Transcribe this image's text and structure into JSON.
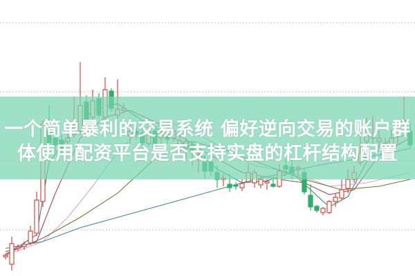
{
  "headline": {
    "line1": "一个简单暴利的交易系统 偏好逆向交易的账户群",
    "line2": "体使用配资平台是否支持实盘的杠杆结构配置"
  },
  "colors": {
    "up": "#e0453f",
    "down": "#2fae66",
    "banner": "#78d6b2",
    "grid": "#d9a0a0",
    "ma": [
      "#2a8a6a",
      "#b0406a",
      "#d9a0e0",
      "#6a7a30",
      "#3a8aa0"
    ]
  },
  "chart_data": {
    "type": "candlestick",
    "title": "",
    "grid": true,
    "candles": [
      {
        "o": 28,
        "c": 30,
        "h": 32,
        "l": 24
      },
      {
        "o": 17,
        "c": 47,
        "h": 57,
        "l": 8
      },
      {
        "o": 40,
        "c": 42,
        "h": 46,
        "l": 36
      },
      {
        "o": 43,
        "c": 46,
        "h": 50,
        "l": 38
      },
      {
        "o": 48,
        "c": 65,
        "h": 73,
        "l": 45
      },
      {
        "o": 62,
        "c": 110,
        "h": 122,
        "l": 58
      },
      {
        "o": 108,
        "c": 220,
        "h": 225,
        "l": 100
      },
      {
        "o": 210,
        "c": 193,
        "h": 248,
        "l": 185
      },
      {
        "o": 200,
        "c": 190,
        "h": 215,
        "l": 180
      },
      {
        "o": 197,
        "c": 185,
        "h": 205,
        "l": 178
      },
      {
        "o": 195,
        "c": 200,
        "h": 220,
        "l": 188
      },
      {
        "o": 205,
        "c": 215,
        "h": 260,
        "l": 200
      },
      {
        "o": 210,
        "c": 247,
        "h": 310,
        "l": 205
      },
      {
        "o": 252,
        "c": 227,
        "h": 262,
        "l": 220
      },
      {
        "o": 230,
        "c": 254,
        "h": 270,
        "l": 225
      },
      {
        "o": 257,
        "c": 233,
        "h": 265,
        "l": 228
      },
      {
        "o": 230,
        "c": 270,
        "h": 288,
        "l": 225
      },
      {
        "o": 268,
        "c": 243,
        "h": 272,
        "l": 238
      },
      {
        "o": 233,
        "c": 242,
        "h": 285,
        "l": 228
      },
      {
        "o": 240,
        "c": 243,
        "h": 250,
        "l": 235
      },
      {
        "o": 203,
        "c": 210,
        "h": 230,
        "l": 192
      },
      {
        "o": 210,
        "c": 205,
        "h": 215,
        "l": 198
      },
      {
        "o": 207,
        "c": 193,
        "h": 212,
        "l": 185
      },
      {
        "o": 192,
        "c": 208,
        "h": 215,
        "l": 188
      },
      {
        "o": 210,
        "c": 187,
        "h": 215,
        "l": 175
      },
      {
        "o": 200,
        "c": 205,
        "h": 210,
        "l": 190
      },
      {
        "o": 205,
        "c": 198,
        "h": 212,
        "l": 192
      },
      {
        "o": 200,
        "c": 210,
        "h": 215,
        "l": 195
      },
      {
        "o": 190,
        "c": 196,
        "h": 220,
        "l": 180
      },
      {
        "o": 185,
        "c": 195,
        "h": 200,
        "l": 170
      },
      {
        "o": 190,
        "c": 180,
        "h": 195,
        "l": 160
      },
      {
        "o": 170,
        "c": 175,
        "h": 180,
        "l": 150
      },
      {
        "o": 165,
        "c": 152,
        "h": 175,
        "l": 140
      },
      {
        "o": 165,
        "c": 152,
        "h": 180,
        "l": 145
      },
      {
        "o": 150,
        "c": 140,
        "h": 160,
        "l": 128
      },
      {
        "o": 140,
        "c": 142,
        "h": 148,
        "l": 130
      },
      {
        "o": 133,
        "c": 128,
        "h": 148,
        "l": 122
      },
      {
        "o": 132,
        "c": 130,
        "h": 136,
        "l": 125
      },
      {
        "o": 128,
        "c": 134,
        "h": 140,
        "l": 123
      },
      {
        "o": 137,
        "c": 150,
        "h": 163,
        "l": 135
      },
      {
        "o": 135,
        "c": 150,
        "h": 155,
        "l": 128
      },
      {
        "o": 132,
        "c": 140,
        "h": 145,
        "l": 127
      },
      {
        "o": 135,
        "c": 137,
        "h": 140,
        "l": 125
      },
      {
        "o": 133,
        "c": 130,
        "h": 145,
        "l": 128
      },
      {
        "o": 130,
        "c": 152,
        "h": 162,
        "l": 128
      },
      {
        "o": 160,
        "c": 155,
        "h": 170,
        "l": 145
      },
      {
        "o": 158,
        "c": 150,
        "h": 168,
        "l": 140
      },
      {
        "o": 155,
        "c": 157,
        "h": 160,
        "l": 145
      },
      {
        "o": 150,
        "c": 122,
        "h": 155,
        "l": 118
      },
      {
        "o": 117,
        "c": 100,
        "h": 133,
        "l": 95
      },
      {
        "o": 101,
        "c": 95,
        "h": 103,
        "l": 92
      },
      {
        "o": 92,
        "c": 98,
        "h": 100,
        "l": 88
      },
      {
        "o": 92,
        "c": 108,
        "h": 110,
        "l": 90
      },
      {
        "o": 108,
        "c": 114,
        "h": 120,
        "l": 100
      },
      {
        "o": 113,
        "c": 125,
        "h": 140,
        "l": 110
      },
      {
        "o": 127,
        "c": 140,
        "h": 155,
        "l": 120
      },
      {
        "o": 140,
        "c": 150,
        "h": 160,
        "l": 135
      },
      {
        "o": 165,
        "c": 177,
        "h": 217,
        "l": 160
      },
      {
        "o": 195,
        "c": 210,
        "h": 230,
        "l": 185
      },
      {
        "o": 200,
        "c": 203,
        "h": 232,
        "l": 190
      },
      {
        "o": 195,
        "c": 200,
        "h": 210,
        "l": 185
      },
      {
        "o": 188,
        "c": 192,
        "h": 200,
        "l": 180
      },
      {
        "o": 190,
        "c": 200,
        "h": 212,
        "l": 185
      },
      {
        "o": 205,
        "c": 215,
        "h": 225,
        "l": 190
      },
      {
        "o": 222,
        "c": 225,
        "h": 260,
        "l": 215
      },
      {
        "o": 210,
        "c": 190,
        "h": 222,
        "l": 185
      }
    ],
    "moving_averages": [
      [
        [
          0,
          30
        ],
        [
          5,
          60
        ],
        [
          7,
          165
        ],
        [
          10,
          200
        ],
        [
          14,
          240
        ],
        [
          18,
          250
        ],
        [
          22,
          225
        ],
        [
          26,
          205
        ],
        [
          30,
          185
        ],
        [
          34,
          155
        ],
        [
          38,
          135
        ],
        [
          42,
          138
        ],
        [
          46,
          150
        ],
        [
          49,
          125
        ],
        [
          52,
          100
        ],
        [
          55,
          115
        ],
        [
          58,
          165
        ],
        [
          62,
          200
        ],
        [
          65,
          205
        ]
      ],
      [
        [
          0,
          35
        ],
        [
          5,
          50
        ],
        [
          8,
          120
        ],
        [
          12,
          200
        ],
        [
          16,
          230
        ],
        [
          20,
          240
        ],
        [
          26,
          215
        ],
        [
          32,
          180
        ],
        [
          38,
          150
        ],
        [
          44,
          140
        ],
        [
          48,
          135
        ],
        [
          52,
          118
        ],
        [
          56,
          125
        ],
        [
          60,
          175
        ],
        [
          65,
          200
        ]
      ],
      [
        [
          0,
          30
        ],
        [
          6,
          50
        ],
        [
          10,
          85
        ],
        [
          14,
          130
        ],
        [
          18,
          180
        ],
        [
          22,
          215
        ],
        [
          28,
          220
        ],
        [
          34,
          190
        ],
        [
          40,
          160
        ],
        [
          46,
          150
        ],
        [
          52,
          130
        ],
        [
          58,
          135
        ],
        [
          65,
          150
        ]
      ],
      [
        [
          0,
          32
        ],
        [
          6,
          55
        ],
        [
          12,
          85
        ],
        [
          18,
          120
        ],
        [
          24,
          170
        ],
        [
          30,
          195
        ],
        [
          36,
          180
        ],
        [
          42,
          160
        ],
        [
          48,
          140
        ],
        [
          54,
          125
        ],
        [
          60,
          130
        ],
        [
          65,
          140
        ]
      ],
      [
        [
          0,
          40
        ],
        [
          6,
          50
        ],
        [
          12,
          70
        ],
        [
          20,
          90
        ],
        [
          30,
          115
        ],
        [
          40,
          140
        ],
        [
          50,
          160
        ],
        [
          60,
          175
        ],
        [
          65,
          185
        ]
      ]
    ],
    "gridlines": [
      67,
      167,
      267,
      367
    ]
  }
}
